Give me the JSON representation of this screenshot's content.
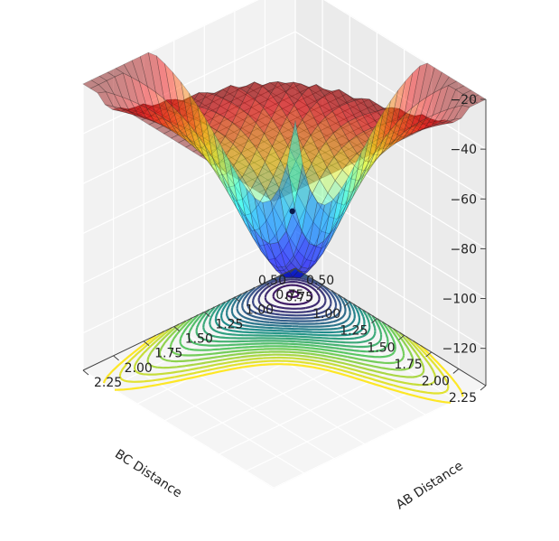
{
  "chart_data": {
    "type": "surface3d",
    "title": "",
    "xlabel": "AB Distance",
    "ylabel": "BC Distance",
    "zlabel": "",
    "x_ticks": [
      "0.50",
      "0.75",
      "1.00",
      "1.25",
      "1.50",
      "1.75",
      "2.00",
      "2.25"
    ],
    "y_ticks": [
      "0.50",
      "0.75",
      "1.00",
      "1.25",
      "1.50",
      "1.75",
      "2.00",
      "2.25"
    ],
    "z_ticks": [
      "−20",
      "−40",
      "−60",
      "−80",
      "−100",
      "−120"
    ],
    "xlim": [
      0.5,
      2.25
    ],
    "ylim": [
      0.5,
      2.25
    ],
    "zlim": [
      -135,
      -20
    ],
    "surface": {
      "colormap": "jet",
      "alpha": 0.45,
      "peak_value": -58,
      "saddle_point": [
        1.13,
        1.13,
        -110
      ],
      "clipped_at": -20
    },
    "contour": {
      "colormap": "viridis",
      "levels": 24,
      "drawn_on_floor": -135
    },
    "marker": {
      "x": 0.74,
      "y": 0.74,
      "z": -100,
      "color": "#0a1a4a"
    },
    "view": {
      "elevation_deg": 20,
      "azimuth_deg": 45
    },
    "grid": true
  }
}
